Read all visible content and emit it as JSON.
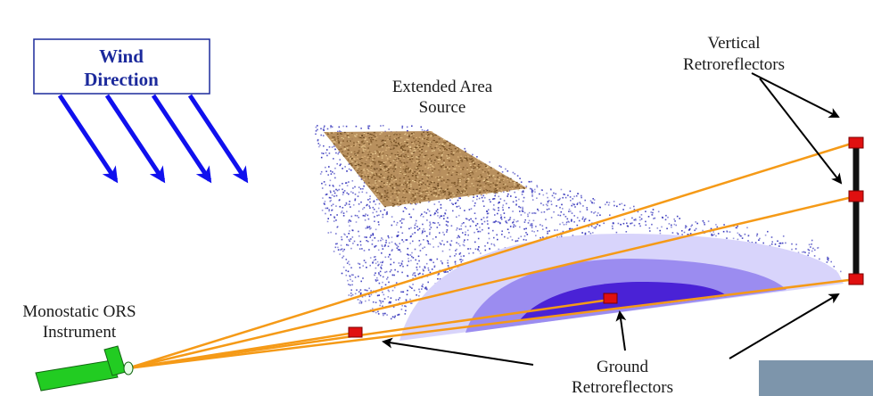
{
  "wind_box": {
    "line1": "Wind",
    "line2": "Direction",
    "border_color": "#1c2a9c",
    "text_color": "#1c2a9c"
  },
  "labels": {
    "vertical_retroreflectors": [
      "Vertical",
      "Retroreflectors"
    ],
    "extended_area_source": [
      "Extended Area",
      "Source"
    ],
    "monostatic_instrument": [
      "Monostatic ORS",
      "Instrument"
    ],
    "ground_retroreflectors": [
      "Ground",
      "Retroreflectors"
    ]
  },
  "colors": {
    "beam": "#f59a17",
    "wind_arrow": "#1010ee",
    "plume_dots": "#2a2ab8",
    "plume_outer": "#d8d4fb",
    "plume_middle": "#9b8cf0",
    "plume_inner": "#4a22d6",
    "source": "#b48a55",
    "retroreflector": "#e01010",
    "instrument": "#22cc22",
    "tower": "#111111"
  }
}
